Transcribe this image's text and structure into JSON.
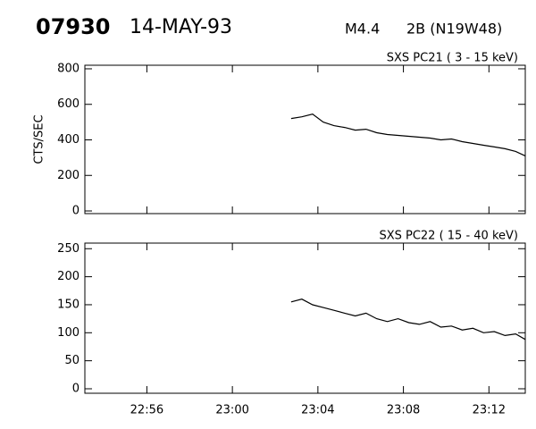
{
  "header": {
    "id": "07930",
    "date": "14-MAY-93",
    "class": "M4.4",
    "flare": "2B (N19W48)"
  },
  "chart_data": [
    {
      "type": "line",
      "title": "SXS PC21 ( 3 - 15 keV)",
      "y_label": "CTS/SEC",
      "color": "#000000",
      "x": [
        1382.75,
        1383.25,
        1383.75,
        1384.25,
        1384.75,
        1385.25,
        1385.75,
        1386.25,
        1386.75,
        1387.25,
        1387.75,
        1388.25,
        1388.75,
        1389.25,
        1389.75,
        1390.25,
        1390.75,
        1391.25,
        1391.75,
        1392.25,
        1392.75,
        1393.25,
        1393.7
      ],
      "values": [
        520,
        530,
        545,
        500,
        480,
        470,
        455,
        460,
        440,
        430,
        425,
        420,
        415,
        410,
        400,
        405,
        390,
        380,
        370,
        360,
        350,
        335,
        310
      ],
      "xlim": [
        1373.1,
        1393.7
      ],
      "xticks": [
        1376,
        1380,
        1384,
        1388,
        1392
      ],
      "ylim": [
        -15,
        820
      ],
      "yticks": [
        0,
        200,
        400,
        600,
        800
      ]
    },
    {
      "type": "line",
      "title": "SXS PC22 ( 15 - 40 keV)",
      "color": "#000000",
      "x": [
        1382.75,
        1383.25,
        1383.75,
        1384.25,
        1384.75,
        1385.25,
        1385.75,
        1386.25,
        1386.75,
        1387.25,
        1387.75,
        1388.25,
        1388.75,
        1389.25,
        1389.75,
        1390.25,
        1390.75,
        1391.25,
        1391.75,
        1392.25,
        1392.75,
        1393.25,
        1393.7
      ],
      "values": [
        155,
        160,
        150,
        145,
        140,
        135,
        130,
        135,
        125,
        120,
        125,
        118,
        115,
        120,
        110,
        112,
        105,
        108,
        100,
        102,
        95,
        98,
        88
      ],
      "xlim": [
        1373.1,
        1393.7
      ],
      "xticks": [
        {
          "value": 1376,
          "label": "22:56"
        },
        {
          "value": 1380,
          "label": "23:00"
        },
        {
          "value": 1384,
          "label": "23:04"
        },
        {
          "value": 1388,
          "label": "23:08"
        },
        {
          "value": 1392,
          "label": "23:12"
        }
      ],
      "ylim": [
        -8,
        260
      ],
      "yticks": [
        0,
        50,
        100,
        150,
        200,
        250
      ]
    }
  ]
}
